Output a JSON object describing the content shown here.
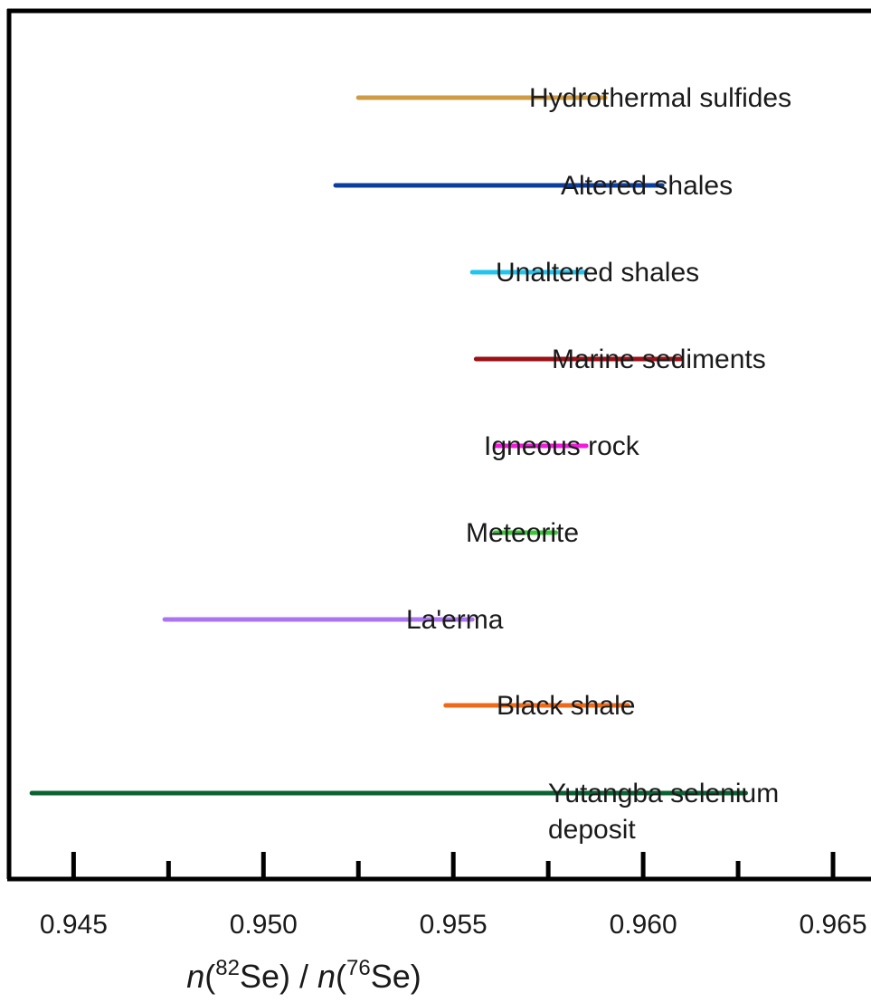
{
  "chart_data": {
    "type": "range",
    "x": {
      "label_parts": [
        "n",
        "82",
        "Se",
        "n",
        "76",
        "Se"
      ],
      "ticks": [
        "0.945",
        "0.950",
        "0.955",
        "0.960",
        "0.965"
      ],
      "tick_values": [
        0.945,
        0.95,
        0.955,
        0.96,
        0.965
      ],
      "minor_ticks": [
        0.9475,
        0.9525,
        0.9575,
        0.9625
      ],
      "lim": [
        0.9433,
        0.966
      ]
    },
    "series": [
      {
        "name": "Hydrothermal sulfides",
        "min": 0.9525,
        "max": 0.959,
        "color": "#cf9b45"
      },
      {
        "name": "Altered shales",
        "min": 0.9519,
        "max": 0.9605,
        "color": "#0b3e9e"
      },
      {
        "name": "Unaltered shales",
        "min": 0.9555,
        "max": 0.9585,
        "color": "#21c4ef"
      },
      {
        "name": "Marine sediments",
        "min": 0.9556,
        "max": 0.961,
        "color": "#9b1116"
      },
      {
        "name": "Igneous rock",
        "min": 0.9561,
        "max": 0.9585,
        "color": "#f01bdc"
      },
      {
        "name": "Meteorite",
        "min": 0.9561,
        "max": 0.9577,
        "color": "#3cc43a"
      },
      {
        "name": "La'erma",
        "min": 0.9474,
        "max": 0.9555,
        "color": "#ab74f0"
      },
      {
        "name": "Black shale",
        "min": 0.9548,
        "max": 0.9596,
        "color": "#ef6a18"
      },
      {
        "name_lines": [
          "Yutangba selenium",
          "deposit"
        ],
        "min": 0.9439,
        "max": 0.9627,
        "color": "#0a6232"
      }
    ]
  }
}
